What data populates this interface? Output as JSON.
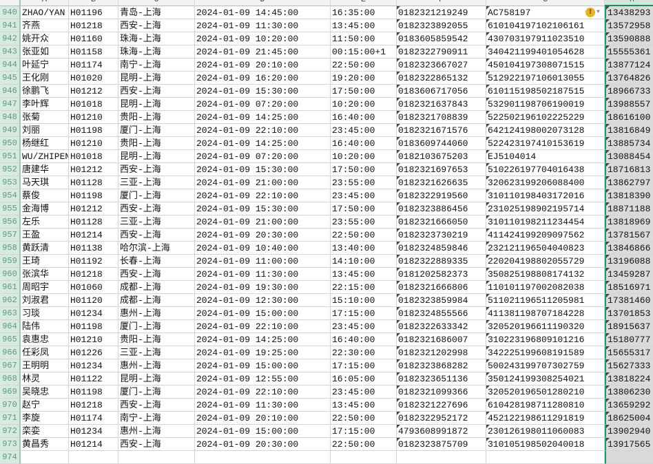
{
  "columns": [
    "A",
    "B",
    "C",
    "D",
    "E",
    "F",
    "G",
    "H"
  ],
  "selected_column": "H",
  "warning_icon": "warning-icon",
  "rows": [
    [
      "940",
      "ZHAO/YAN",
      "H01196",
      "青岛-上海",
      "2024-01-09 14:45:00",
      "16:35:00",
      "0182321219249",
      "AC758197",
      "13438293"
    ],
    [
      "941",
      "齐燕",
      "H01218",
      "西安-上海",
      "2024-01-09 11:30:00",
      "13:45:00",
      "0182323892055",
      "610104197102106161",
      "13572958"
    ],
    [
      "942",
      "姚开众",
      "H01160",
      "珠海-上海",
      "2024-01-09 10:20:00",
      "11:50:00",
      "0183605859542",
      "430703197911023510",
      "13590888"
    ],
    [
      "943",
      "张亚如",
      "H01158",
      "珠海-上海",
      "2024-01-09 21:45:00",
      "00:15:00+1",
      "0182322790911",
      "340421199401054628",
      "15555361"
    ],
    [
      "944",
      "叶延宁",
      "H01174",
      "南宁-上海",
      "2024-01-09 20:10:00",
      "22:50:00",
      "0182323667027",
      "450104197308071515",
      "13877124"
    ],
    [
      "945",
      "王化刚",
      "H01020",
      "昆明-上海",
      "2024-01-09 16:20:00",
      "19:20:00",
      "0182322865132",
      "512922197106013055",
      "13764826"
    ],
    [
      "946",
      "徐鹏飞",
      "H01212",
      "西安-上海",
      "2024-01-09 15:30:00",
      "17:50:00",
      "0183606717056",
      "610115198502187515",
      "18966733"
    ],
    [
      "947",
      "李叶辉",
      "H01018",
      "昆明-上海",
      "2024-01-09 07:20:00",
      "10:20:00",
      "0182321637843",
      "532901198706190019",
      "13988557"
    ],
    [
      "948",
      "张菊",
      "H01210",
      "贵阳-上海",
      "2024-01-09 14:25:00",
      "16:40:00",
      "0182321708839",
      "522502196102225229",
      "18616100"
    ],
    [
      "949",
      "刘丽",
      "H01198",
      "厦门-上海",
      "2024-01-09 22:10:00",
      "23:45:00",
      "0182321671576",
      "642124198002073128",
      "13816849"
    ],
    [
      "950",
      "杨继红",
      "H01210",
      "贵阳-上海",
      "2024-01-09 14:25:00",
      "16:40:00",
      "0183609744060",
      "522423197410153619",
      "13885734"
    ],
    [
      "951",
      "WU/ZHIPEN",
      "H01018",
      "昆明-上海",
      "2024-01-09 07:20:00",
      "10:20:00",
      "0182103675203",
      "EJ5104014",
      "13088454"
    ],
    [
      "952",
      "唐建华",
      "H01212",
      "西安-上海",
      "2024-01-09 15:30:00",
      "17:50:00",
      "0182321697653",
      "510226197704016438",
      "18716813"
    ],
    [
      "953",
      "马天琪",
      "H01128",
      "三亚-上海",
      "2024-01-09 21:00:00",
      "23:55:00",
      "0182321626635",
      "320623199206088400",
      "13862797"
    ],
    [
      "954",
      "蔡俊",
      "H01198",
      "厦门-上海",
      "2024-01-09 22:10:00",
      "23:45:00",
      "0182322919560",
      "310110198403172016",
      "13818390"
    ],
    [
      "955",
      "金海博",
      "H01212",
      "西安-上海",
      "2024-01-09 15:30:00",
      "17:50:00",
      "0182323886456",
      "231025198902195714",
      "18871188"
    ],
    [
      "956",
      "左乐",
      "H01128",
      "三亚-上海",
      "2024-01-09 21:00:00",
      "23:55:00",
      "0182321666050",
      "310110198211234454",
      "13818969"
    ],
    [
      "957",
      "王盈",
      "H01214",
      "西安-上海",
      "2024-01-09 20:30:00",
      "22:50:00",
      "0182323730219",
      "411424199209097562",
      "13781567"
    ],
    [
      "958",
      "黄跃清",
      "H01138",
      "哈尔滨-上海",
      "2024-01-09 10:40:00",
      "13:40:00",
      "0182324859846",
      "232121196504040823",
      "13846866"
    ],
    [
      "959",
      "王琦",
      "H01192",
      "长春-上海",
      "2024-01-09 11:00:00",
      "14:10:00",
      "0182322889335",
      "220204198802055729",
      "13196088"
    ],
    [
      "960",
      "张滨华",
      "H01218",
      "西安-上海",
      "2024-01-09 11:30:00",
      "13:45:00",
      "0181202582373",
      "350825198808174132",
      "13459287"
    ],
    [
      "961",
      "周昭宇",
      "H01060",
      "成都-上海",
      "2024-01-09 19:30:00",
      "22:15:00",
      "0182321666806",
      "110101197002082038",
      "18516971"
    ],
    [
      "962",
      "刘淑君",
      "H01120",
      "成都-上海",
      "2024-01-09 12:30:00",
      "15:10:00",
      "0182323859984",
      "511021196511205981",
      "17381460"
    ],
    [
      "963",
      "习琰",
      "H01234",
      "惠州-上海",
      "2024-01-09 15:00:00",
      "17:15:00",
      "0182324855566",
      "411381198707184228",
      "13701853"
    ],
    [
      "964",
      "陆伟",
      "H01198",
      "厦门-上海",
      "2024-01-09 22:10:00",
      "23:45:00",
      "0182322633342",
      "320520196611190320",
      "18915637"
    ],
    [
      "965",
      "袁惠忠",
      "H01210",
      "贵阳-上海",
      "2024-01-09 14:25:00",
      "16:40:00",
      "0182321686007",
      "310223196809101216",
      "15180777"
    ],
    [
      "966",
      "任彩凤",
      "H01226",
      "三亚-上海",
      "2024-01-09 19:25:00",
      "22:30:00",
      "0182321202998",
      "342225199608191589",
      "15655317"
    ],
    [
      "967",
      "王明明",
      "H01234",
      "惠州-上海",
      "2024-01-09 15:00:00",
      "17:15:00",
      "0182323868282",
      "500243199707302759",
      "15627333"
    ],
    [
      "968",
      "林灵",
      "H01122",
      "昆明-上海",
      "2024-01-09 12:55:00",
      "16:05:00",
      "0182323651136",
      "350124199308254021",
      "13818224"
    ],
    [
      "969",
      "吴晓忠",
      "H01198",
      "厦门-上海",
      "2024-01-09 22:10:00",
      "23:45:00",
      "0182321099366",
      "320520196501280210",
      "13806230"
    ],
    [
      "970",
      "赵宁",
      "H01218",
      "西安-上海",
      "2024-01-09 11:30:00",
      "13:45:00",
      "0182321227696",
      "610428198711280810",
      "13659292"
    ],
    [
      "971",
      "李旋",
      "H01174",
      "南宁-上海",
      "2024-01-09 20:10:00",
      "22:50:00",
      "0182322952172",
      "452122198611291819",
      "18625004"
    ],
    [
      "972",
      "栾娈",
      "H01234",
      "惠州-上海",
      "2024-01-09 15:00:00",
      "17:15:00",
      "4793608991872",
      "230126198011060083",
      "13902940"
    ],
    [
      "973",
      "黄昌秀",
      "H01214",
      "西安-上海",
      "2024-01-09 20:30:00",
      "22:50:00",
      "0182323875709",
      "310105198502040018",
      "13917565"
    ],
    [
      "974",
      "",
      "",
      "",
      "",
      "",
      "",
      "",
      ""
    ]
  ]
}
